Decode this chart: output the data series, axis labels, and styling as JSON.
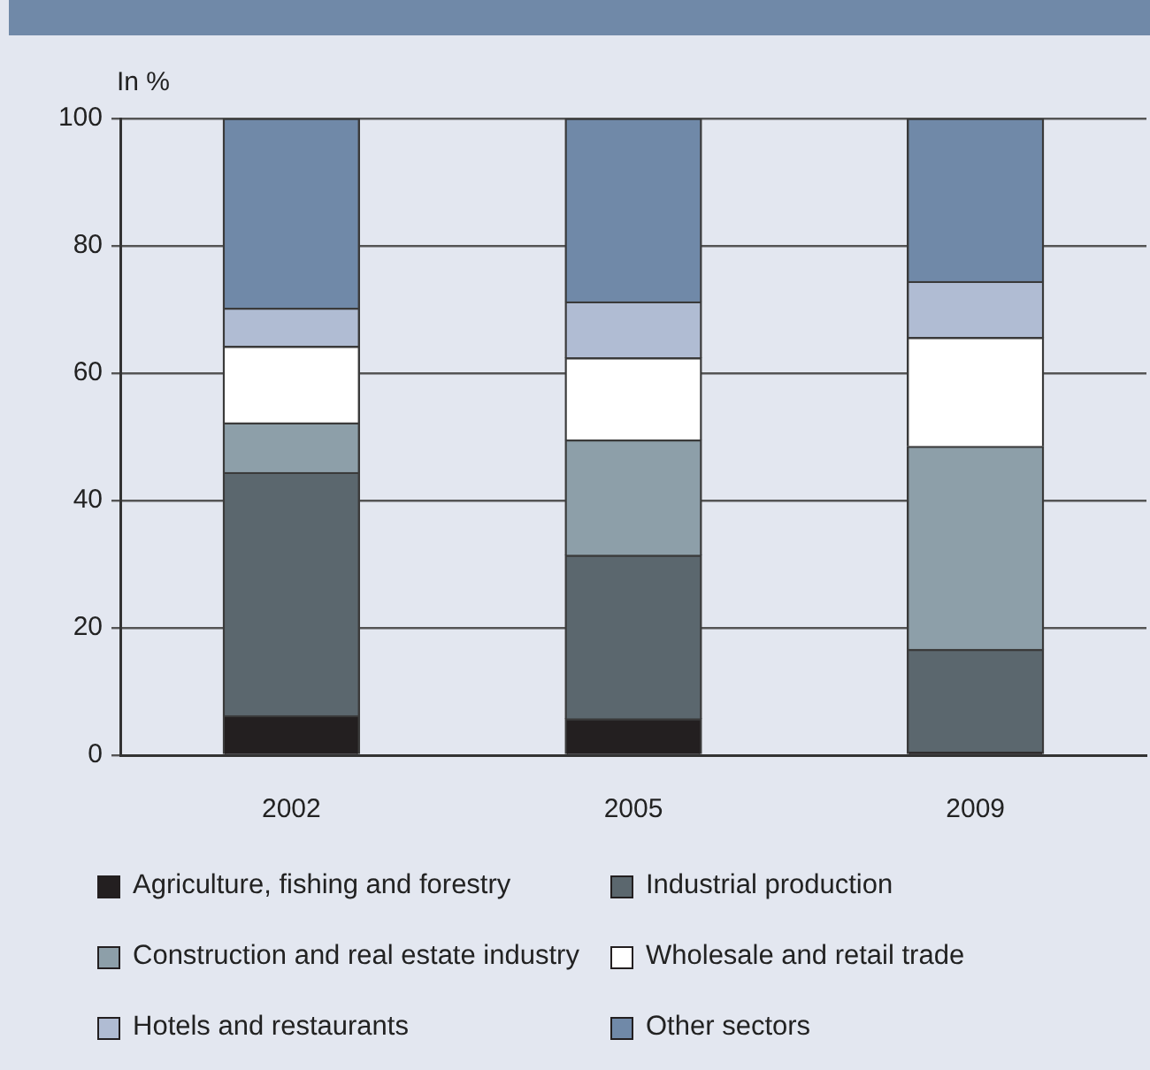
{
  "chart_data": {
    "type": "bar",
    "stacked": true,
    "ylabel": "In %",
    "categories": [
      "2002",
      "2005",
      "2009"
    ],
    "series": [
      {
        "name": "Agriculture, fishing and forestry",
        "color": "#231f20",
        "values": [
          6.2,
          5.7,
          0.5
        ]
      },
      {
        "name": "Industrial production",
        "color": "#5b676e",
        "values": [
          38.2,
          25.7,
          16.1
        ]
      },
      {
        "name": "Construction and real estate industry",
        "color": "#8d9fa9",
        "values": [
          7.8,
          18.1,
          31.9
        ]
      },
      {
        "name": "Wholesale and retail trade",
        "color": "#ffffff",
        "values": [
          12.0,
          12.9,
          17.1
        ]
      },
      {
        "name": "Hotels and restaurants",
        "color": "#b0bcd3",
        "values": [
          6.0,
          8.8,
          8.8
        ]
      },
      {
        "name": "Other sectors",
        "color": "#7089a8",
        "values": [
          29.8,
          28.8,
          25.6
        ]
      }
    ],
    "ylim": [
      0,
      100
    ],
    "yticks": [
      0,
      20,
      40,
      60,
      80,
      100
    ],
    "grid": "y",
    "legend": "bottom"
  }
}
